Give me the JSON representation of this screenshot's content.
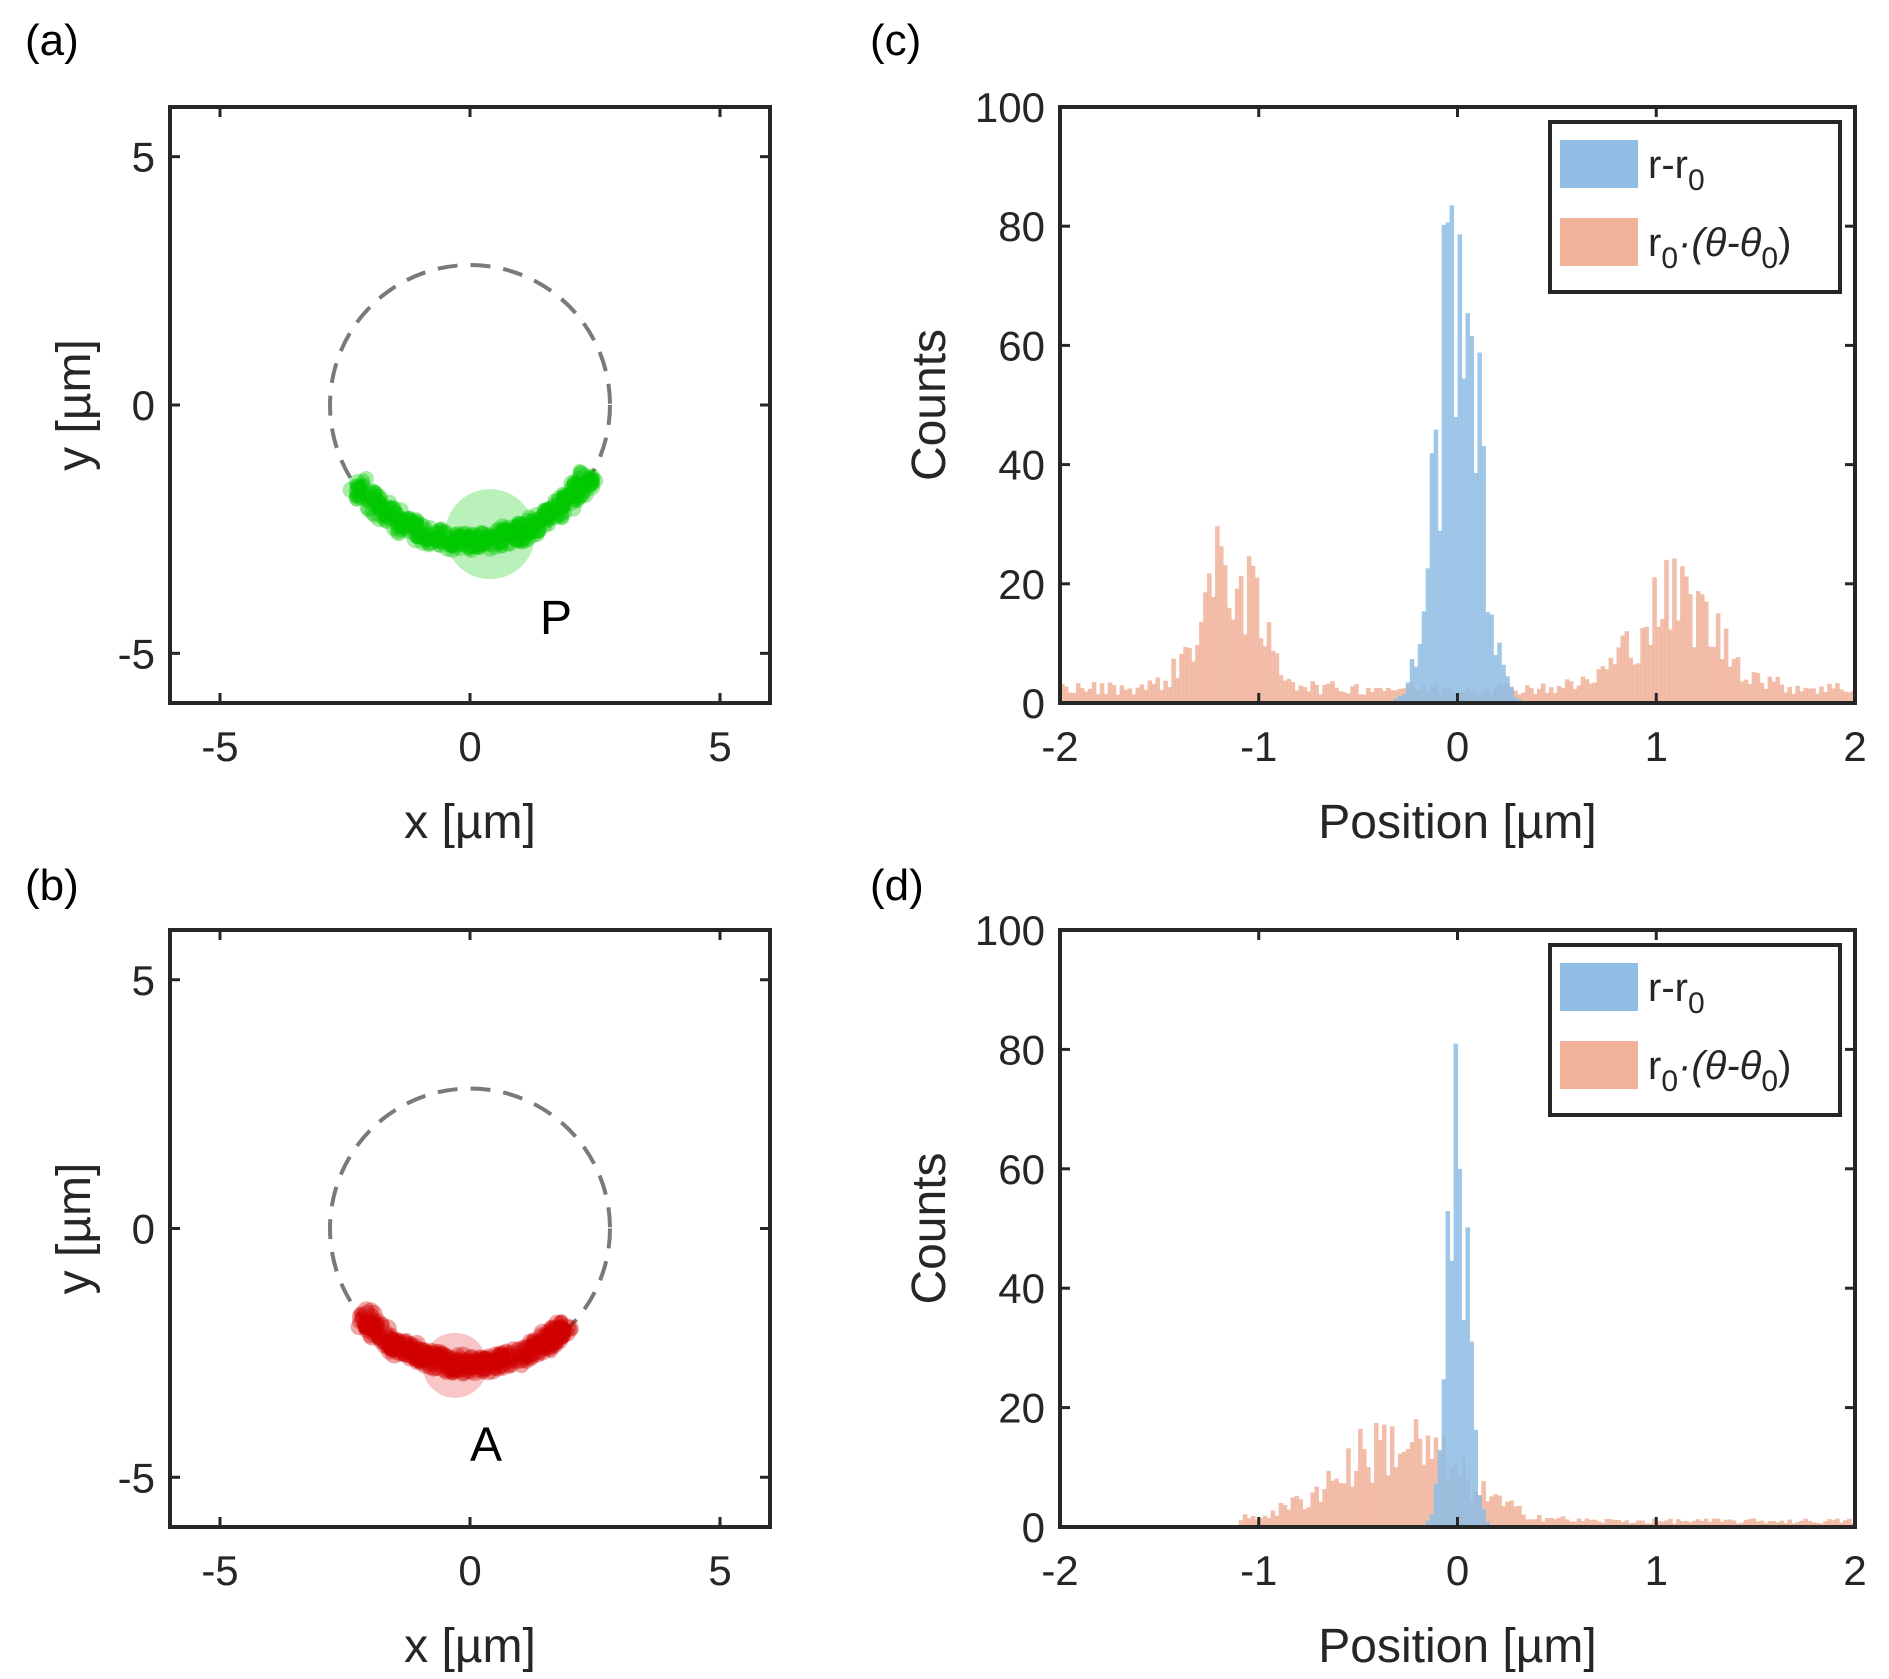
{
  "chart_data": [
    {
      "panel": "(a)",
      "type": "scatter",
      "xlabel": "x [µm]",
      "ylabel": "y [µm]",
      "xlim": [
        -6,
        6
      ],
      "ylim": [
        -6,
        6
      ],
      "xticks": [
        -5,
        0,
        5
      ],
      "yticks": [
        -5,
        0,
        5
      ],
      "dashed_circle": {
        "cx": 0,
        "cy": 0,
        "r": 2.8
      },
      "trajectory_theta_deg": [
        215,
        330
      ],
      "trajectory_color": "#00c800",
      "marker": {
        "label": "P",
        "x": 0.4,
        "y": -2.6,
        "r": 0.9,
        "color": "#66e066"
      }
    },
    {
      "panel": "(b)",
      "type": "scatter",
      "xlabel": "x [µm]",
      "ylabel": "y [µm]",
      "xlim": [
        -6,
        6
      ],
      "ylim": [
        -6,
        6
      ],
      "xticks": [
        -5,
        0,
        5
      ],
      "yticks": [
        -5,
        0,
        5
      ],
      "dashed_circle": {
        "cx": 0,
        "cy": 0,
        "r": 2.8
      },
      "trajectory_theta_deg": [
        218,
        315
      ],
      "trajectory_color": "#d00000",
      "marker": {
        "label": "A",
        "x": -0.3,
        "y": -2.75,
        "r": 0.65,
        "color": "#f08080"
      }
    },
    {
      "panel": "(c)",
      "type": "bar",
      "title": "",
      "xlabel": "Position [µm]",
      "ylabel": "Counts",
      "xlim": [
        -2,
        2
      ],
      "ylim": [
        0,
        100
      ],
      "xticks": [
        -2,
        -1,
        0,
        1,
        2
      ],
      "yticks": [
        0,
        20,
        40,
        60,
        80,
        100
      ],
      "legend_position": "top-right",
      "series": [
        {
          "name": "r-r0",
          "legend_main": "r-r",
          "legend_sub": "0",
          "color": "#8fbde4",
          "peaks": [
            {
              "mu": 0,
              "sigma": 0.1,
              "amp": 75
            }
          ],
          "background": 0,
          "range": [
            -0.45,
            0.45
          ],
          "spike_max": 87
        },
        {
          "name": "r0·(θ-θ0)",
          "legend_r": "r",
          "legend_r_sub": "0",
          "legend_rest": "·(θ-θ",
          "legend_theta_sub": "0",
          "legend_close": ")",
          "color": "#f0b39a",
          "peaks": [
            {
              "mu": -1.15,
              "sigma": 0.14,
              "amp": 20
            },
            {
              "mu": 1.1,
              "sigma": 0.2,
              "amp": 15
            }
          ],
          "background": 2.5,
          "range": [
            -2,
            2
          ],
          "spike_max": 33
        }
      ]
    },
    {
      "panel": "(d)",
      "type": "bar",
      "title": "",
      "xlabel": "Position [µm]",
      "ylabel": "Counts",
      "xlim": [
        -2,
        2
      ],
      "ylim": [
        0,
        100
      ],
      "xticks": [
        -2,
        -1,
        0,
        1,
        2
      ],
      "yticks": [
        0,
        20,
        40,
        60,
        80,
        100
      ],
      "legend_position": "top-right",
      "series": [
        {
          "name": "r-r0",
          "legend_main": "r-r",
          "legend_sub": "0",
          "color": "#8fbde4",
          "peaks": [
            {
              "mu": 0,
              "sigma": 0.05,
              "amp": 70
            }
          ],
          "background": 0,
          "range": [
            -0.25,
            0.25
          ],
          "spike_max": 83
        },
        {
          "name": "r0·(θ-θ0)",
          "legend_r": "r",
          "legend_r_sub": "0",
          "legend_rest": "·(θ-θ",
          "legend_theta_sub": "0",
          "legend_close": ")",
          "color": "#f0b39a",
          "peaks": [
            {
              "mu": -0.3,
              "sigma": 0.3,
              "amp": 13
            }
          ],
          "background": 1,
          "range": [
            -1.1,
            2
          ],
          "spike_max": 24
        }
      ]
    }
  ]
}
